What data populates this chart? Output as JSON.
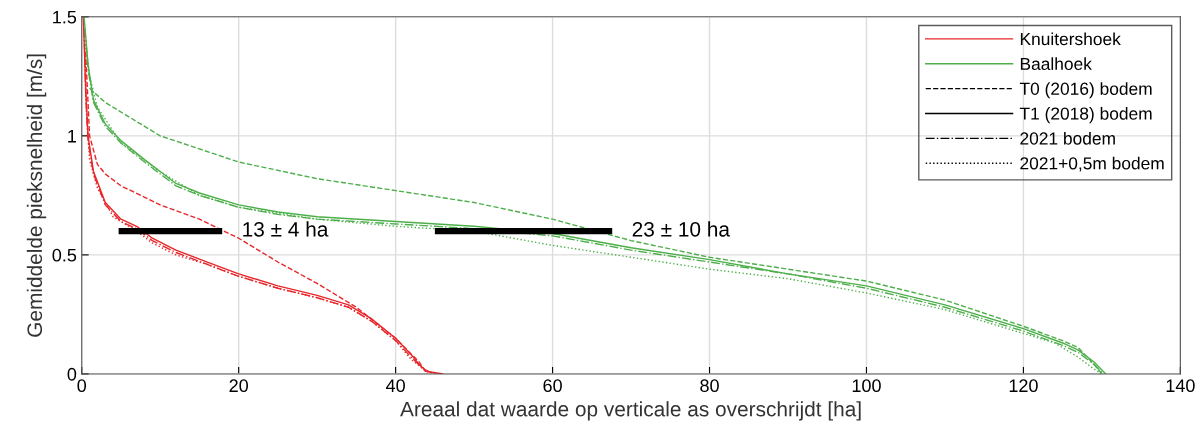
{
  "chart_data": {
    "type": "line",
    "xlabel": "Areaal dat waarde op verticale as overschrijdt [ha]",
    "ylabel": "Gemiddelde pieksnelheid [m/s]",
    "xlim": [
      0,
      140
    ],
    "xticks": [
      0,
      20,
      40,
      60,
      80,
      100,
      120,
      140
    ],
    "ylim": [
      0,
      1.5
    ],
    "yticks": [
      0,
      0.5,
      1,
      1.5
    ],
    "grid": true,
    "legend": "top right",
    "series": [
      {
        "name": "Knuitershoek",
        "color": "#e8262a",
        "line_style": "solid",
        "x": [
          0.2,
          0.5,
          0.8,
          1.5,
          3,
          5,
          7,
          9,
          12,
          16,
          20,
          25,
          30,
          34,
          37,
          40,
          42,
          43,
          44,
          46
        ],
        "values": [
          1.5,
          1.2,
          1.0,
          0.85,
          0.72,
          0.65,
          0.62,
          0.57,
          0.52,
          0.47,
          0.42,
          0.37,
          0.33,
          0.29,
          0.23,
          0.15,
          0.08,
          0.04,
          0.01,
          0
        ]
      },
      {
        "name": "Baalhoek",
        "color": "#4daf4a",
        "line_style": "solid",
        "x": [
          0.3,
          0.8,
          1.5,
          3,
          5,
          8,
          10,
          12,
          15,
          20,
          25,
          30,
          40,
          50,
          60,
          70,
          80,
          90,
          100,
          110,
          120,
          125,
          127,
          129,
          130.5
        ],
        "values": [
          1.5,
          1.3,
          1.15,
          1.05,
          0.98,
          0.9,
          0.85,
          0.8,
          0.76,
          0.71,
          0.68,
          0.66,
          0.64,
          0.62,
          0.59,
          0.53,
          0.48,
          0.42,
          0.37,
          0.29,
          0.19,
          0.13,
          0.1,
          0.05,
          0
        ]
      },
      {
        "name": "T0 (2016) bodem",
        "color": "#000000",
        "line_style": "dashed"
      },
      {
        "name": "T1 (2018) bodem",
        "color": "#000000",
        "line_style": "solid"
      },
      {
        "name": "2021 bodem",
        "color": "#000000",
        "line_style": "dashdot"
      },
      {
        "name": "2021+0,5m bodem",
        "color": "#000000",
        "line_style": "dotted"
      },
      {
        "color": "#e8262a",
        "line_style": "dashed",
        "x": [
          0.5,
          1,
          2,
          3,
          5,
          10,
          15,
          20,
          25,
          30,
          35,
          40,
          43,
          44
        ],
        "values": [
          1.35,
          1.0,
          0.88,
          0.84,
          0.79,
          0.71,
          0.65,
          0.57,
          0.47,
          0.38,
          0.28,
          0.15,
          0.05,
          0
        ]
      },
      {
        "color": "#e8262a",
        "line_style": "dashdot",
        "x": [
          0.3,
          0.5,
          0.8,
          1.5,
          3,
          5,
          7,
          9,
          12,
          16,
          20,
          25,
          30,
          34,
          37,
          40,
          42,
          43.5,
          45
        ],
        "values": [
          1.45,
          1.18,
          0.98,
          0.84,
          0.71,
          0.64,
          0.61,
          0.56,
          0.51,
          0.46,
          0.41,
          0.36,
          0.32,
          0.28,
          0.22,
          0.14,
          0.07,
          0.02,
          0
        ]
      },
      {
        "color": "#e8262a",
        "line_style": "dotted",
        "x": [
          0.4,
          0.6,
          1,
          2,
          4,
          7,
          9,
          12,
          16,
          20,
          25,
          30,
          34,
          37,
          40,
          42,
          44,
          45.5
        ],
        "values": [
          1.4,
          1.1,
          0.9,
          0.78,
          0.66,
          0.6,
          0.55,
          0.5,
          0.46,
          0.41,
          0.36,
          0.32,
          0.28,
          0.22,
          0.14,
          0.06,
          0.01,
          0
        ]
      },
      {
        "color": "#4daf4a",
        "line_style": "dashed",
        "x": [
          1,
          3,
          10,
          20,
          30,
          40,
          50,
          60,
          70,
          80,
          90,
          100,
          110,
          120,
          125,
          127,
          129,
          130
        ],
        "values": [
          1.2,
          1.14,
          1.0,
          0.89,
          0.82,
          0.77,
          0.72,
          0.65,
          0.56,
          0.49,
          0.44,
          0.39,
          0.31,
          0.2,
          0.14,
          0.11,
          0.04,
          0
        ]
      },
      {
        "color": "#4daf4a",
        "line_style": "dashdot",
        "x": [
          0.4,
          0.8,
          1.5,
          3,
          5,
          8,
          10,
          12,
          15,
          20,
          25,
          30,
          40,
          50,
          60,
          70,
          80,
          90,
          100,
          110,
          120,
          125,
          127,
          129,
          130.2
        ],
        "values": [
          1.45,
          1.28,
          1.14,
          1.04,
          0.97,
          0.89,
          0.84,
          0.79,
          0.75,
          0.7,
          0.67,
          0.65,
          0.63,
          0.61,
          0.58,
          0.52,
          0.47,
          0.42,
          0.36,
          0.28,
          0.18,
          0.12,
          0.09,
          0.04,
          0
        ]
      },
      {
        "color": "#4daf4a",
        "line_style": "dotted",
        "x": [
          0.5,
          1,
          2,
          5,
          10,
          15,
          20,
          30,
          40,
          50,
          60,
          70,
          80,
          90,
          100,
          110,
          120,
          124,
          127,
          129,
          130
        ],
        "values": [
          1.4,
          1.25,
          1.12,
          0.97,
          0.85,
          0.75,
          0.7,
          0.65,
          0.62,
          0.6,
          0.54,
          0.49,
          0.44,
          0.4,
          0.34,
          0.27,
          0.17,
          0.13,
          0.07,
          0.02,
          0
        ]
      },
      {
        "type": "step",
        "color": "#000000",
        "x": [
          4.7,
          17.9
        ],
        "values": [
          0.6,
          0.6
        ]
      },
      {
        "type": "step",
        "color": "#000000",
        "x": [
          45,
          67.6
        ],
        "values": [
          0.6,
          0.6
        ]
      }
    ],
    "annotations": [
      {
        "text": "13 ± 4 ha",
        "x": 17.9,
        "y": 0.6
      },
      {
        "text": "23 ± 10 ha",
        "x": 67.6,
        "y": 0.6
      }
    ]
  }
}
